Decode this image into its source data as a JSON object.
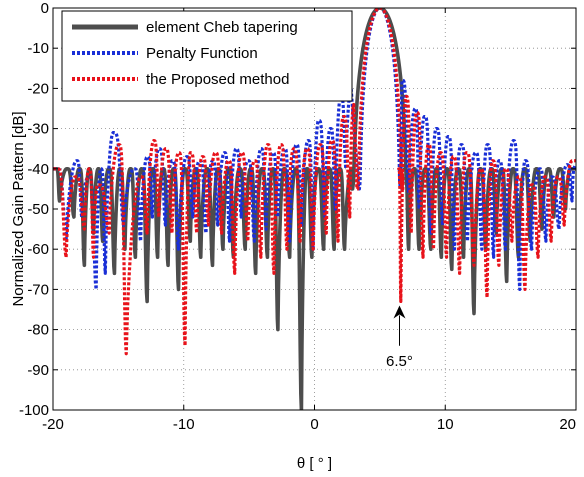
{
  "chart_data": {
    "type": "line",
    "title": "",
    "xlabel": "θ [ ° ]",
    "ylabel": "Normalized Gain Pattern [dB]",
    "xlim": [
      -20,
      20
    ],
    "ylim": [
      -100,
      0
    ],
    "xticks": [
      -20,
      -10,
      0,
      10,
      20
    ],
    "yticks": [
      0,
      -10,
      -20,
      -30,
      -40,
      -50,
      -60,
      -70,
      -80,
      -90,
      -100
    ],
    "grid": true,
    "legend_position": "top-left",
    "main_lobe_center": 5,
    "series": [
      {
        "name": "element Cheb tapering",
        "color": "#4d4d4d",
        "style": "solid",
        "sidelobe_level": -40,
        "main_lobe_halfwidth": 1.6,
        "nulls": [
          [
            -19.5,
            -48
          ],
          [
            -18.4,
            -52
          ],
          [
            -17.6,
            -64
          ],
          [
            -16.9,
            -56
          ],
          [
            -16.2,
            -58
          ],
          [
            -15.3,
            -66
          ],
          [
            -14.5,
            -60
          ],
          [
            -13.7,
            -62
          ],
          [
            -12.8,
            -73
          ],
          [
            -12.0,
            -62
          ],
          [
            -11.2,
            -64
          ],
          [
            -10.4,
            -70
          ],
          [
            -9.5,
            -58
          ],
          [
            -8.7,
            -62
          ],
          [
            -7.8,
            -64
          ],
          [
            -7.0,
            -60
          ],
          [
            -6.2,
            -62
          ],
          [
            -5.3,
            -60
          ],
          [
            -4.5,
            -66
          ],
          [
            -3.6,
            -62
          ],
          [
            -2.8,
            -80
          ],
          [
            -1.9,
            -62
          ],
          [
            -1.0,
            -100
          ],
          [
            -0.2,
            -62
          ],
          [
            0.7,
            -60
          ],
          [
            1.5,
            -60
          ],
          [
            2.3,
            -60
          ],
          [
            7.2,
            -60
          ],
          [
            8.0,
            -60
          ],
          [
            8.9,
            -60
          ],
          [
            9.7,
            -62
          ],
          [
            10.5,
            -65
          ],
          [
            11.4,
            -62
          ],
          [
            12.2,
            -76
          ],
          [
            13.1,
            -60
          ],
          [
            13.9,
            -56
          ],
          [
            14.7,
            -68
          ],
          [
            15.6,
            -62
          ],
          [
            16.5,
            -58
          ],
          [
            17.4,
            -55
          ],
          [
            18.3,
            -52
          ],
          [
            19.2,
            -50
          ]
        ]
      },
      {
        "name": "Penalty Function",
        "color": "#1a2fd6",
        "style": "dotted",
        "main_lobe_halfwidth": 1.2,
        "lobes": [
          [
            -19.7,
            -40
          ],
          [
            -18.2,
            -38
          ],
          [
            -17.3,
            -42
          ],
          [
            -15.4,
            -31
          ],
          [
            -13.8,
            -40
          ],
          [
            -12.8,
            -37
          ],
          [
            -11.9,
            -35
          ],
          [
            -10.9,
            -38
          ],
          [
            -9.8,
            -37
          ],
          [
            -8.8,
            -38
          ],
          [
            -7.8,
            -38
          ],
          [
            -6.9,
            -36
          ],
          [
            -6.0,
            -35
          ],
          [
            -5.1,
            -38
          ],
          [
            -4.1,
            -35
          ],
          [
            -3.2,
            -36
          ],
          [
            -2.3,
            -35
          ],
          [
            -1.4,
            -34
          ],
          [
            -0.5,
            -33
          ],
          [
            0.3,
            -28
          ],
          [
            1.2,
            -30
          ],
          [
            2.0,
            -22
          ],
          [
            2.8,
            -20
          ],
          [
            3.3,
            -16
          ],
          [
            6.7,
            -18
          ],
          [
            7.7,
            -25
          ],
          [
            8.4,
            -27
          ],
          [
            9.3,
            -30
          ],
          [
            10.2,
            -32
          ],
          [
            11.2,
            -34
          ],
          [
            12.3,
            -36
          ],
          [
            13.2,
            -34
          ],
          [
            14.1,
            -38
          ],
          [
            15.2,
            -33
          ],
          [
            16.1,
            -38
          ],
          [
            17.2,
            -40
          ],
          [
            18.1,
            -42
          ],
          [
            19.3,
            -39
          ]
        ],
        "nulls": [
          [
            -19.0,
            -58
          ],
          [
            -17.8,
            -52
          ],
          [
            -16.7,
            -70
          ],
          [
            -16.0,
            -66
          ],
          [
            -14.6,
            -54
          ],
          [
            -13.3,
            -58
          ],
          [
            -12.4,
            -52
          ],
          [
            -11.4,
            -54
          ],
          [
            -10.4,
            -60
          ],
          [
            -9.3,
            -52
          ],
          [
            -8.3,
            -56
          ],
          [
            -7.4,
            -54
          ],
          [
            -6.5,
            -58
          ],
          [
            -5.6,
            -52
          ],
          [
            -4.6,
            -58
          ],
          [
            -3.7,
            -55
          ],
          [
            -2.8,
            -52
          ],
          [
            -1.9,
            -58
          ],
          [
            -1.0,
            -54
          ],
          [
            -0.1,
            -60
          ],
          [
            0.8,
            -52
          ],
          [
            1.6,
            -50
          ],
          [
            2.4,
            -40
          ],
          [
            7.2,
            -46
          ],
          [
            8.0,
            -50
          ],
          [
            8.9,
            -56
          ],
          [
            9.8,
            -54
          ],
          [
            10.7,
            -60
          ],
          [
            11.7,
            -58
          ],
          [
            12.8,
            -60
          ],
          [
            13.7,
            -62
          ],
          [
            14.6,
            -60
          ],
          [
            15.7,
            -70
          ],
          [
            16.6,
            -60
          ],
          [
            17.7,
            -58
          ],
          [
            18.7,
            -55
          ],
          [
            19.7,
            -48
          ]
        ]
      },
      {
        "name": "the Proposed method",
        "color": "#e8121a",
        "style": "dotted",
        "main_lobe_halfwidth": 1.3,
        "lobes": [
          [
            -19.7,
            -40
          ],
          [
            -18.3,
            -42
          ],
          [
            -16.6,
            -44
          ],
          [
            -15.0,
            -34
          ],
          [
            -13.3,
            -42
          ],
          [
            -12.3,
            -33
          ],
          [
            -11.4,
            -35
          ],
          [
            -10.4,
            -36
          ],
          [
            -9.5,
            -36
          ],
          [
            -8.6,
            -37
          ],
          [
            -7.6,
            -36
          ],
          [
            -6.6,
            -38
          ],
          [
            -5.6,
            -36
          ],
          [
            -4.6,
            -38
          ],
          [
            -3.6,
            -34
          ],
          [
            -2.6,
            -34
          ],
          [
            -1.6,
            -35
          ],
          [
            -0.6,
            -35
          ],
          [
            0.4,
            -34
          ],
          [
            1.3,
            -33
          ],
          [
            2.2,
            -27
          ],
          [
            3.0,
            -24
          ],
          [
            6.3,
            -12
          ],
          [
            7.0,
            -22
          ],
          [
            7.8,
            -26
          ],
          [
            8.7,
            -34
          ],
          [
            9.6,
            -36
          ],
          [
            10.6,
            -37
          ],
          [
            11.6,
            -36
          ],
          [
            12.7,
            -40
          ],
          [
            13.6,
            -38
          ],
          [
            14.6,
            -40
          ],
          [
            15.6,
            -42
          ],
          [
            16.6,
            -44
          ],
          [
            17.6,
            -42
          ],
          [
            18.6,
            -42
          ],
          [
            19.7,
            -38
          ]
        ],
        "nulls": [
          [
            -19.0,
            -62
          ],
          [
            -17.6,
            -55
          ],
          [
            -16.9,
            -62
          ],
          [
            -15.7,
            -56
          ],
          [
            -14.4,
            -86
          ],
          [
            -12.8,
            -56
          ],
          [
            -11.9,
            -52
          ],
          [
            -10.9,
            -56
          ],
          [
            -9.9,
            -84
          ],
          [
            -9.0,
            -56
          ],
          [
            -8.1,
            -54
          ],
          [
            -7.1,
            -56
          ],
          [
            -6.1,
            -66
          ],
          [
            -5.1,
            -58
          ],
          [
            -4.1,
            -62
          ],
          [
            -3.1,
            -66
          ],
          [
            -2.1,
            -60
          ],
          [
            -1.1,
            -58
          ],
          [
            -0.1,
            -60
          ],
          [
            0.9,
            -56
          ],
          [
            1.8,
            -58
          ],
          [
            2.7,
            -52
          ],
          [
            6.6,
            -73
          ],
          [
            7.4,
            -56
          ],
          [
            8.3,
            -62
          ],
          [
            9.1,
            -60
          ],
          [
            10.1,
            -62
          ],
          [
            11.1,
            -66
          ],
          [
            12.2,
            -64
          ],
          [
            13.2,
            -72
          ],
          [
            14.1,
            -64
          ],
          [
            15.1,
            -58
          ],
          [
            16.1,
            -70
          ],
          [
            17.1,
            -62
          ],
          [
            18.1,
            -58
          ],
          [
            19.1,
            -54
          ]
        ]
      }
    ],
    "annotations": [
      {
        "text": "6.5°",
        "x": 6.5,
        "y": -88,
        "arrow_to_y": -74
      }
    ]
  }
}
